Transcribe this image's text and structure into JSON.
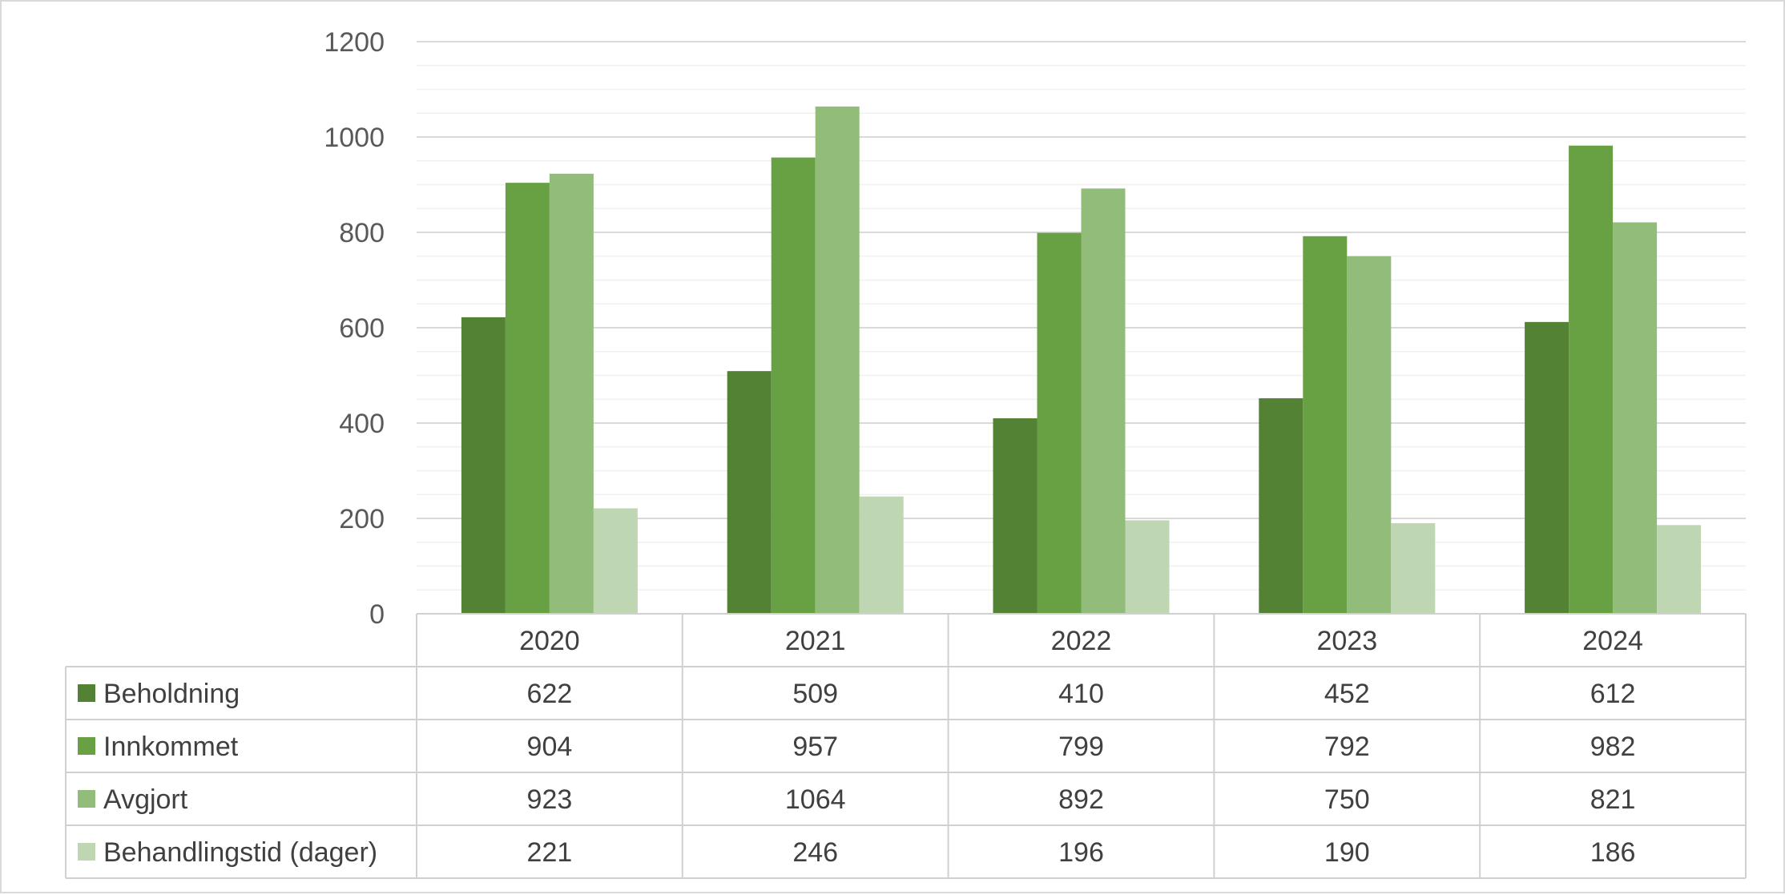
{
  "chart_data": {
    "type": "bar",
    "categories": [
      "2020",
      "2021",
      "2022",
      "2023",
      "2024"
    ],
    "series": [
      {
        "name": "Beholdning",
        "color": "#548235",
        "values": [
          622,
          509,
          410,
          452,
          612
        ]
      },
      {
        "name": "Innkommet",
        "color": "#68a144",
        "values": [
          904,
          957,
          799,
          792,
          982
        ]
      },
      {
        "name": "Avgjort",
        "color": "#92bc79",
        "values": [
          923,
          1064,
          892,
          750,
          821
        ]
      },
      {
        "name": "Behandlingstid (dager)",
        "color": "#bed6b1",
        "values": [
          221,
          246,
          196,
          190,
          186
        ]
      }
    ],
    "ylim": [
      0,
      1200
    ],
    "yticks": [
      0,
      200,
      400,
      600,
      800,
      1000,
      1200
    ],
    "grid": true,
    "legend": "data-table-below"
  }
}
